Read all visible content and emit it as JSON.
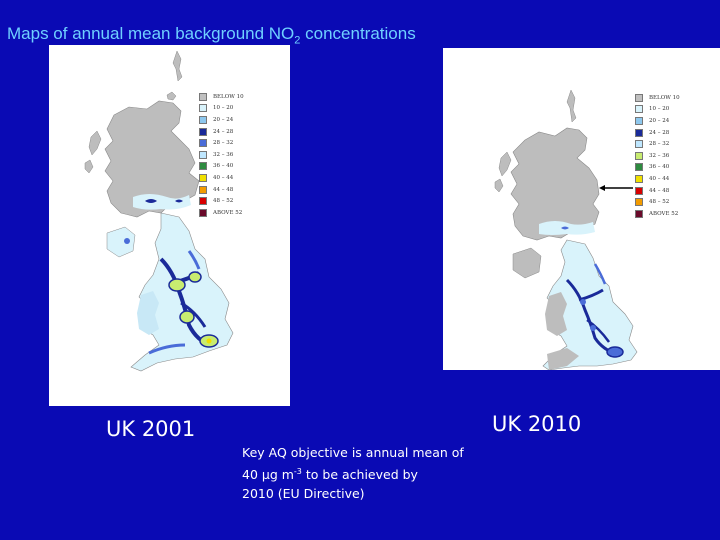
{
  "slide": {
    "title_main": "Maps of annual mean background NO",
    "title_sub": "2",
    "title_tail": " concentrations",
    "background_color": "#0a0ab4",
    "title_color": "#6fd0ff"
  },
  "maps": [
    {
      "caption": "UK 2001"
    },
    {
      "caption": "UK 2010"
    }
  ],
  "legend_2001": [
    {
      "label": "BELOW 10",
      "color": "#c0c0c0"
    },
    {
      "label": "10 – 20",
      "color": "#d9f3fb"
    },
    {
      "label": "20 – 24",
      "color": "#8ec8ee"
    },
    {
      "label": "24 – 28",
      "color": "#1a2a99"
    },
    {
      "label": "28 – 32",
      "color": "#4a6cd8"
    },
    {
      "label": "32 – 36",
      "color": "#bfe7ff"
    },
    {
      "label": "36 – 40",
      "color": "#2e8b40"
    },
    {
      "label": "40 – 44",
      "color": "#f0e000"
    },
    {
      "label": "44 – 48",
      "color": "#f39b00"
    },
    {
      "label": "48 – 52",
      "color": "#d80000"
    },
    {
      "label": "ABOVE 52",
      "color": "#6a0a2a"
    }
  ],
  "legend_2010": [
    {
      "label": "BELOW 10",
      "color": "#c0c0c0"
    },
    {
      "label": "10 – 20",
      "color": "#d9f3fb"
    },
    {
      "label": "20 – 24",
      "color": "#8ec8ee"
    },
    {
      "label": "24 – 28",
      "color": "#1a2a99"
    },
    {
      "label": "28 – 32",
      "color": "#bfe7ff"
    },
    {
      "label": "32 – 36",
      "color": "#c8ec70"
    },
    {
      "label": "36 – 40",
      "color": "#2e8b40"
    },
    {
      "label": "40 – 44",
      "color": "#f0e000"
    },
    {
      "label": "44 – 48",
      "color": "#d80000"
    },
    {
      "label": "48 – 52",
      "color": "#f39b00"
    },
    {
      "label": "ABOVE 52",
      "color": "#6a0a2a"
    }
  ],
  "note": {
    "line1": "Key AQ objective is annual mean of",
    "line2_pre": "40 µg m",
    "line2_sup": "-3",
    "line2_post": " to  be achieved by",
    "line3": "2010 (EU Directive)"
  }
}
